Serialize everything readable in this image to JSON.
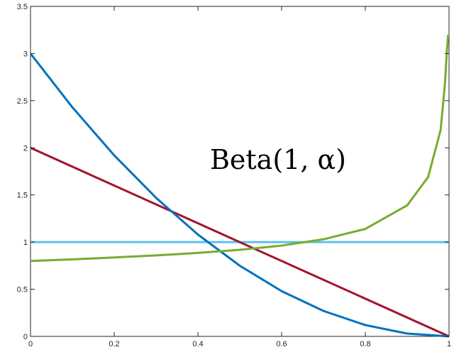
{
  "chart_data": {
    "type": "line",
    "title": "",
    "xlabel": "",
    "ylabel": "",
    "xlim": [
      0,
      1
    ],
    "ylim": [
      0,
      3.5
    ],
    "grid": false,
    "x_ticks": [
      "0",
      "0.2",
      "0.4",
      "0.6",
      "0.8",
      "1"
    ],
    "x_tick_values": [
      0,
      0.2,
      0.4,
      0.6,
      0.8,
      1
    ],
    "y_ticks": [
      "0",
      "0.5",
      "1",
      "1.5",
      "2",
      "2.5",
      "3",
      "3.5"
    ],
    "y_tick_values": [
      0,
      0.5,
      1,
      1.5,
      2,
      2.5,
      3,
      3.5
    ],
    "annotation": {
      "text": "Beta(1, α)"
    },
    "series": [
      {
        "color": "#5bc0eb",
        "x": [
          0,
          1
        ],
        "y": [
          1,
          1
        ]
      },
      {
        "color": "#a2142f",
        "x": [
          0,
          1
        ],
        "y": [
          2,
          0
        ]
      },
      {
        "color": "#0072bd",
        "x": [
          0,
          0.1,
          0.2,
          0.3,
          0.4,
          0.5,
          0.6,
          0.7,
          0.8,
          0.9,
          1.0
        ],
        "y": [
          3,
          2.43,
          1.92,
          1.47,
          1.08,
          0.75,
          0.48,
          0.27,
          0.12,
          0.03,
          0
        ]
      },
      {
        "color": "#77ac30",
        "x": [
          0,
          0.1,
          0.2,
          0.3,
          0.4,
          0.5,
          0.6,
          0.7,
          0.8,
          0.9,
          0.95,
          0.98,
          0.99,
          0.995,
          0.998
        ],
        "y": [
          0.8,
          0.817,
          0.837,
          0.859,
          0.885,
          0.918,
          0.963,
          1.03,
          1.14,
          1.39,
          1.69,
          2.19,
          2.67,
          3.04,
          3.2
        ]
      }
    ]
  }
}
